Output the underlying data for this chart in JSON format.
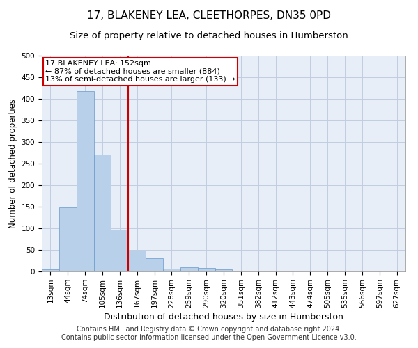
{
  "title": "17, BLAKENEY LEA, CLEETHORPES, DN35 0PD",
  "subtitle": "Size of property relative to detached houses in Humberston",
  "xlabel": "Distribution of detached houses by size in Humberston",
  "ylabel": "Number of detached properties",
  "categories": [
    "13sqm",
    "44sqm",
    "74sqm",
    "105sqm",
    "136sqm",
    "167sqm",
    "197sqm",
    "228sqm",
    "259sqm",
    "290sqm",
    "320sqm",
    "351sqm",
    "382sqm",
    "412sqm",
    "443sqm",
    "474sqm",
    "505sqm",
    "535sqm",
    "566sqm",
    "597sqm",
    "627sqm"
  ],
  "values": [
    5,
    149,
    418,
    271,
    97,
    48,
    30,
    7,
    9,
    8,
    5,
    0,
    0,
    0,
    0,
    0,
    0,
    0,
    0,
    0,
    0
  ],
  "bar_color": "#b8d0ea",
  "bar_edge_color": "#6699cc",
  "vline_x": 4.5,
  "vline_color": "#cc0000",
  "annotation_text": "17 BLAKENEY LEA: 152sqm\n← 87% of detached houses are smaller (884)\n13% of semi-detached houses are larger (133) →",
  "annotation_box_color": "#ffffff",
  "annotation_box_edge": "#cc0000",
  "ylim": [
    0,
    500
  ],
  "yticks": [
    0,
    50,
    100,
    150,
    200,
    250,
    300,
    350,
    400,
    450,
    500
  ],
  "footer": "Contains HM Land Registry data © Crown copyright and database right 2024.\nContains public sector information licensed under the Open Government Licence v3.0.",
  "background_color": "#e8eef8",
  "grid_color": "#c0cce0",
  "title_fontsize": 11,
  "subtitle_fontsize": 9.5,
  "xlabel_fontsize": 9,
  "ylabel_fontsize": 8.5,
  "tick_fontsize": 7.5,
  "footer_fontsize": 7,
  "ann_fontsize": 8
}
